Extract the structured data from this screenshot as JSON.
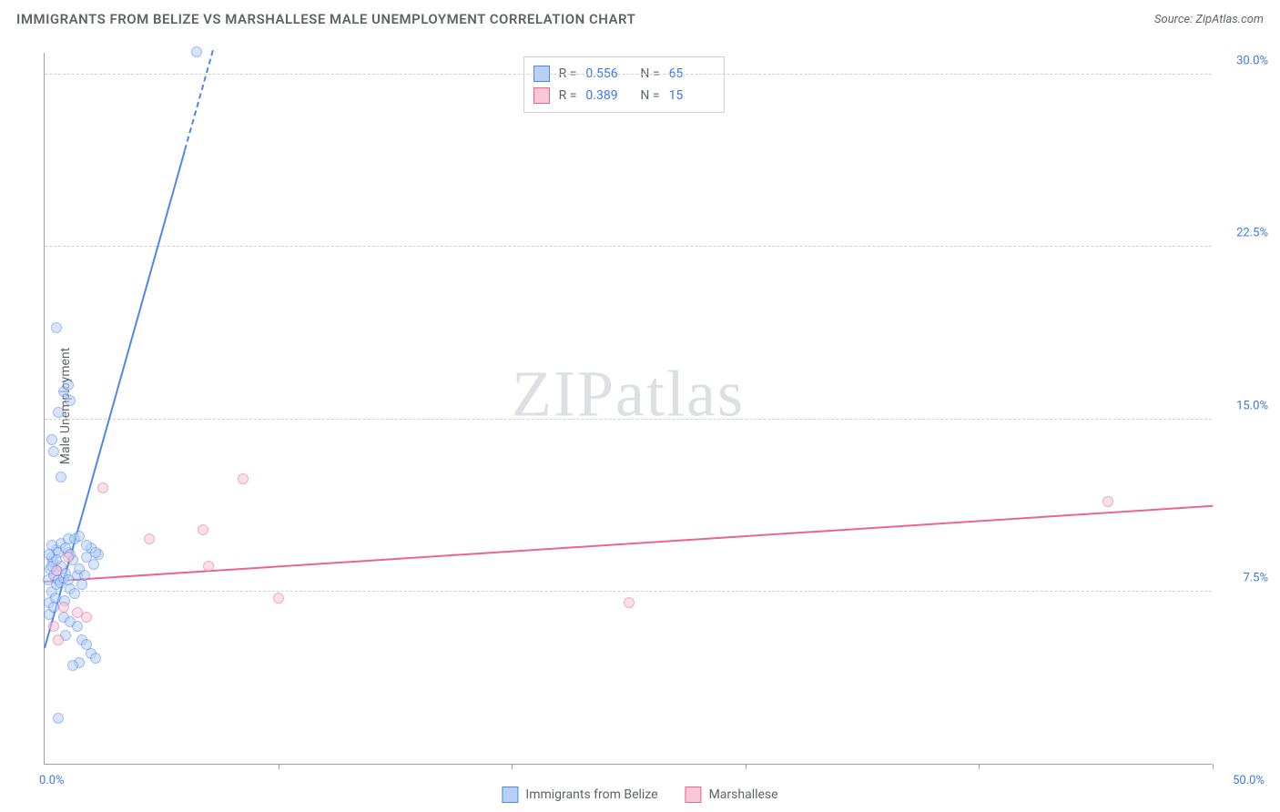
{
  "header": {
    "title": "IMMIGRANTS FROM BELIZE VS MARSHALLESE MALE UNEMPLOYMENT CORRELATION CHART",
    "source": "Source: ZipAtlas.com"
  },
  "ylabel": "Male Unemployment",
  "watermark": "ZIPatlas",
  "chart": {
    "type": "scatter",
    "xlim": [
      0,
      50
    ],
    "ylim": [
      0,
      31
    ],
    "x_ticks": [
      0,
      10,
      20,
      30,
      40,
      50
    ],
    "x_tick_labels": {
      "0": "0.0%",
      "50": "50.0%"
    },
    "y_ticks": [
      7.5,
      15.0,
      22.5,
      30.0
    ],
    "y_tick_labels": [
      "7.5%",
      "15.0%",
      "22.5%",
      "30.0%"
    ],
    "grid_color": "#d0d0d0",
    "axis_color": "#9aa0a6",
    "background_color": "#ffffff",
    "point_radius": 6,
    "point_opacity": 0.55,
    "line_width": 2.5,
    "label_fontsize": 13,
    "label_color": "#3b78e7"
  },
  "series": [
    {
      "name": "Immigrants from Belize",
      "color": "#4f86ec",
      "fill": "#b9d0f5",
      "r_label": "R =",
      "r": "0.556",
      "n_label": "N =",
      "n": "65",
      "trend": {
        "x1": 0,
        "y1": 5.0,
        "x2": 7.2,
        "y2": 31.0,
        "dash_from_x": 6.0
      },
      "points": [
        [
          0.2,
          7.0
        ],
        [
          0.3,
          7.5
        ],
        [
          0.15,
          8.0
        ],
        [
          0.4,
          8.2
        ],
        [
          0.25,
          8.5
        ],
        [
          0.5,
          7.8
        ],
        [
          0.35,
          8.8
        ],
        [
          0.6,
          8.0
        ],
        [
          0.2,
          6.5
        ],
        [
          0.45,
          7.2
        ],
        [
          0.55,
          8.4
        ],
        [
          0.3,
          9.0
        ],
        [
          0.7,
          8.6
        ],
        [
          0.65,
          7.9
        ],
        [
          0.8,
          8.1
        ],
        [
          0.4,
          6.8
        ],
        [
          0.9,
          8.3
        ],
        [
          1.0,
          8.0
        ],
        [
          1.1,
          7.6
        ],
        [
          1.2,
          8.9
        ],
        [
          1.3,
          7.4
        ],
        [
          1.0,
          9.2
        ],
        [
          1.4,
          8.2
        ],
        [
          0.85,
          7.1
        ],
        [
          1.5,
          8.5
        ],
        [
          1.6,
          7.8
        ],
        [
          1.8,
          9.0
        ],
        [
          1.7,
          8.2
        ],
        [
          2.0,
          9.4
        ],
        [
          2.1,
          8.7
        ],
        [
          2.3,
          9.1
        ],
        [
          0.5,
          9.3
        ],
        [
          0.3,
          9.5
        ],
        [
          0.7,
          9.6
        ],
        [
          1.0,
          9.8
        ],
        [
          0.6,
          9.2
        ],
        [
          0.8,
          6.4
        ],
        [
          1.1,
          6.2
        ],
        [
          1.4,
          6.0
        ],
        [
          0.9,
          5.6
        ],
        [
          1.6,
          5.4
        ],
        [
          1.8,
          5.2
        ],
        [
          2.0,
          4.8
        ],
        [
          2.2,
          4.6
        ],
        [
          1.5,
          4.4
        ],
        [
          1.2,
          4.3
        ],
        [
          0.6,
          2.0
        ],
        [
          0.4,
          13.6
        ],
        [
          0.3,
          14.1
        ],
        [
          0.7,
          12.5
        ],
        [
          0.8,
          16.2
        ],
        [
          1.0,
          16.5
        ],
        [
          1.1,
          15.8
        ],
        [
          0.6,
          15.3
        ],
        [
          0.5,
          19.0
        ],
        [
          1.8,
          9.5
        ],
        [
          2.2,
          9.2
        ],
        [
          1.3,
          9.8
        ],
        [
          1.5,
          9.9
        ],
        [
          0.9,
          9.4
        ],
        [
          1.1,
          9.1
        ],
        [
          6.5,
          31.0
        ],
        [
          0.3,
          8.6
        ],
        [
          0.5,
          8.9
        ],
        [
          0.2,
          9.1
        ]
      ]
    },
    {
      "name": "Marshallese",
      "color": "#ec6394",
      "fill": "#f8c7d8",
      "r_label": "R =",
      "r": "0.389",
      "n_label": "N =",
      "n": "15",
      "trend": {
        "x1": 0,
        "y1": 7.9,
        "x2": 50,
        "y2": 11.2,
        "dash_from_x": 50
      },
      "points": [
        [
          0.4,
          6.0
        ],
        [
          0.6,
          5.4
        ],
        [
          0.8,
          6.8
        ],
        [
          1.0,
          9.0
        ],
        [
          1.4,
          6.6
        ],
        [
          1.8,
          6.4
        ],
        [
          2.5,
          12.0
        ],
        [
          4.5,
          9.8
        ],
        [
          6.8,
          10.2
        ],
        [
          7.0,
          8.6
        ],
        [
          8.5,
          12.4
        ],
        [
          10.0,
          7.2
        ],
        [
          25.0,
          7.0
        ],
        [
          45.5,
          11.4
        ],
        [
          0.5,
          8.4
        ]
      ]
    }
  ],
  "bottom_legend": [
    {
      "label": "Immigrants from Belize",
      "fill": "#b9d0f5",
      "stroke": "#4f86ec"
    },
    {
      "label": "Marshallese",
      "fill": "#f8c7d8",
      "stroke": "#ec6394"
    }
  ]
}
